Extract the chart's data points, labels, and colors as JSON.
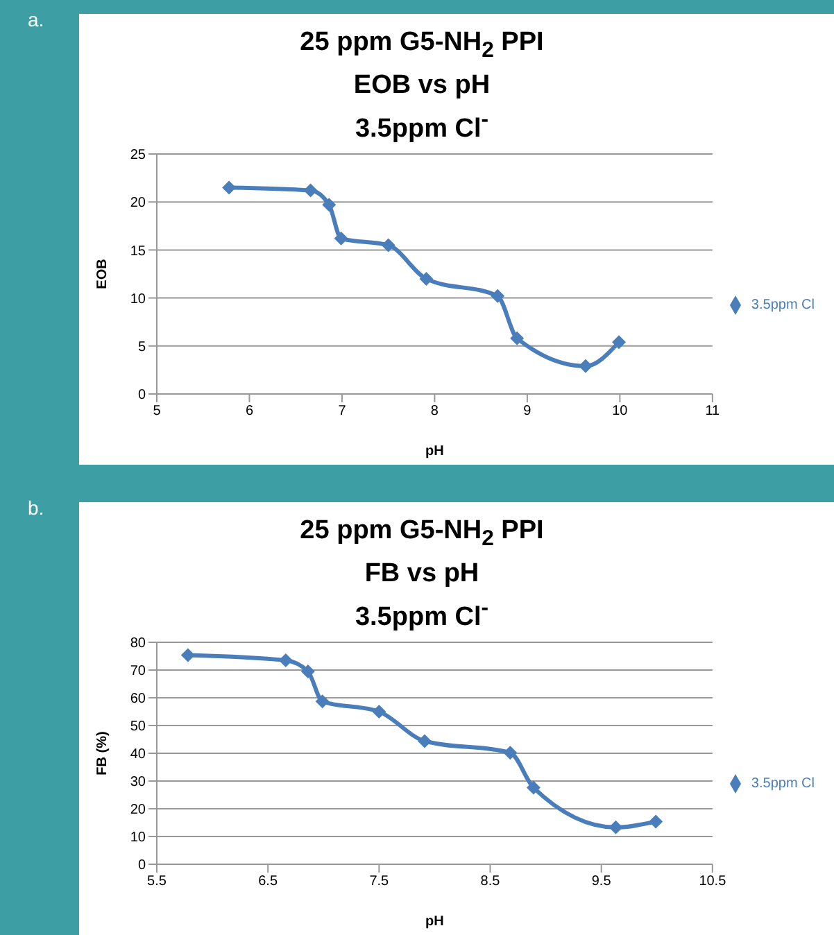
{
  "chart_data": [
    {
      "type": "line",
      "title": "25 ppm G5-NH$_{2}$ PPI\nEOB vs pH\n3.5ppm Cl$^{-}$",
      "xlabel": "pH",
      "ylabel": "EOB",
      "x": [
        5.78,
        6.66,
        6.86,
        6.99,
        7.5,
        7.91,
        8.68,
        8.89,
        9.63,
        9.99
      ],
      "series": [
        {
          "name": "3.5ppm Cl",
          "color": "#4a7ebb",
          "values": [
            21.5,
            21.2,
            19.7,
            16.2,
            15.5,
            12.0,
            10.2,
            5.8,
            2.9,
            5.4
          ]
        }
      ],
      "xlim": [
        5,
        11
      ],
      "xticks": [
        5,
        6,
        7,
        8,
        9,
        10,
        11
      ],
      "ylim": [
        0,
        25
      ],
      "yticks": [
        0,
        5,
        10,
        15,
        20,
        25
      ],
      "grid": "y",
      "legend": "right",
      "marker": "diamond",
      "line_style": "solid",
      "annotations": [
        "a."
      ]
    },
    {
      "type": "line",
      "title": "25 ppm G5-NH$_{2}$ PPI\nFB vs pH\n3.5ppm Cl$^{-}$",
      "xlabel": "pH",
      "ylabel": "FB (%)",
      "x": [
        5.78,
        6.66,
        6.86,
        6.99,
        7.5,
        7.91,
        8.68,
        8.89,
        9.63,
        9.99
      ],
      "series": [
        {
          "name": "3.5ppm Cl",
          "color": "#4a7ebb",
          "values": [
            75.4,
            73.5,
            69.5,
            58.7,
            55,
            44.4,
            40.2,
            27.6,
            13.3,
            15.4
          ]
        }
      ],
      "xlim": [
        5.5,
        10.5
      ],
      "xticks": [
        5.5,
        6.5,
        7.5,
        8.5,
        9.5,
        10.5
      ],
      "ylim": [
        0,
        80
      ],
      "yticks": [
        0,
        10,
        20,
        30,
        40,
        50,
        60,
        70,
        80
      ],
      "grid": "y",
      "legend": "right",
      "marker": "diamond",
      "line_style": "solid",
      "annotations": [
        "b."
      ]
    }
  ]
}
